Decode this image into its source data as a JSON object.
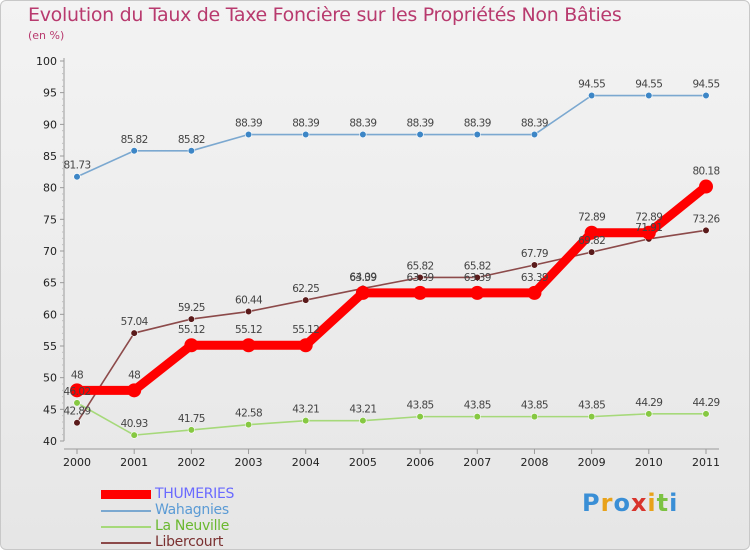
{
  "title": "Evolution du Taux de Taxe Foncière sur les Propriétés Non Bâties",
  "unit_label": "(en %)",
  "logo": {
    "text": "Proxiti",
    "colors": [
      "#3a8fd6",
      "#e8a21a",
      "#3a8fd6",
      "#d8342c",
      "#e8a21a",
      "#7cc242",
      "#3a8fd6"
    ]
  },
  "chart_data": {
    "type": "line",
    "title": "Evolution du Taux de Taxe Foncière sur les Propriétés Non Bâties",
    "ylabel": "(en %)",
    "xlabel": "",
    "categories": [
      "2000",
      "2001",
      "2002",
      "2003",
      "2004",
      "2005",
      "2006",
      "2007",
      "2008",
      "2009",
      "2010",
      "2011"
    ],
    "ylim": [
      40,
      100
    ],
    "yticks": [
      40,
      45,
      50,
      55,
      60,
      65,
      70,
      75,
      80,
      85,
      90,
      95,
      100
    ],
    "grid": false,
    "legend_position": "bottom-left",
    "series": [
      {
        "name": "Wahagnies",
        "color": "#7ba8d0",
        "marker_color": "#3d86c6",
        "emphasis": false,
        "values": [
          81.73,
          85.82,
          85.82,
          88.39,
          88.39,
          88.39,
          88.39,
          88.39,
          88.39,
          94.55,
          94.55,
          94.55
        ],
        "labels": [
          "81.73",
          "85.82",
          "85.82",
          "88.39",
          "88.39",
          "88.39",
          "88.39",
          "88.39",
          "88.39",
          "94.55",
          "94.55",
          "94.55"
        ]
      },
      {
        "name": "La Neuville",
        "color": "#a6d97a",
        "marker_color": "#86c842",
        "emphasis": false,
        "values": [
          46.02,
          40.93,
          41.75,
          42.58,
          43.21,
          43.21,
          43.85,
          43.85,
          43.85,
          43.85,
          44.29,
          44.29
        ],
        "labels": [
          "46.02",
          "40.93",
          "41.75",
          "42.58",
          "43.21",
          "43.21",
          "43.85",
          "43.85",
          "43.85",
          "43.85",
          "44.29",
          "44.29"
        ]
      },
      {
        "name": "Libercourt",
        "color": "#8c4a4a",
        "marker_color": "#5a1a1a",
        "emphasis": false,
        "values": [
          42.89,
          57.04,
          59.25,
          60.44,
          62.25,
          64.09,
          65.82,
          65.82,
          67.79,
          69.82,
          71.91,
          73.26
        ],
        "labels": [
          "42.89",
          "57.04",
          "59.25",
          "60.44",
          "62.25",
          "64.09",
          "65.82",
          "65.82",
          "67.79",
          "69.82",
          "71.91",
          "73.26"
        ]
      },
      {
        "name": "THUMERIES",
        "color": "#ff0000",
        "marker_color": "#ff0000",
        "emphasis": true,
        "values": [
          48,
          48,
          55.12,
          55.12,
          55.12,
          63.39,
          63.39,
          63.39,
          63.39,
          72.89,
          72.89,
          80.18
        ],
        "labels": [
          "48",
          "48",
          "55.12",
          "55.12",
          "55.12",
          "63.39",
          "63.39",
          "63.39",
          "63.39",
          "72.89",
          "72.89",
          "80.18"
        ]
      }
    ],
    "legend": [
      {
        "name": "THUMERIES",
        "line_color": "#ff0000",
        "text_color": "#6a6aff",
        "bold_line": true
      },
      {
        "name": "Wahagnies",
        "line_color": "#7ba8d0",
        "text_color": "#5b9bd5",
        "bold_line": false
      },
      {
        "name": "La Neuville",
        "line_color": "#a6d97a",
        "text_color": "#6ab82f",
        "bold_line": false
      },
      {
        "name": "Libercourt",
        "line_color": "#8c4a4a",
        "text_color": "#7a3030",
        "bold_line": false
      }
    ]
  }
}
